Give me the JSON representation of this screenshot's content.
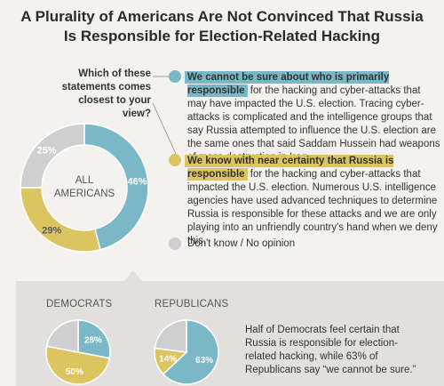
{
  "title_line1": "A Plurality of Americans Are Not Convinced That Russia",
  "title_line2": "Is Responsible for Election-Related Hacking",
  "question": "Which of these statements comes closest to your view?",
  "statements": {
    "uncertain": {
      "highlight": "We cannot be sure about who is primarily responsible",
      "body": "for the hacking and cyber-attacks that may have impacted the U.S. election. Tracing cyber-attacks is complicated and the intelligence groups that say Russia attempted to influence the U.S. election are the same ones that said Saddam Hussein had weapons of mass destruction in Iraq."
    },
    "certain": {
      "highlight": "We know with near certainty that Russia is responsible",
      "body": "for the hacking and cyber-attacks that impacted the U.S. election. Numerous U.S. intelligence agencies have used advanced techniques to determine Russia is responsible for these attacks and we are only playing into an unfriendly country's hand when we deny this."
    },
    "dont_know": "Don't know / No opinion"
  },
  "groups": {
    "democrats_label": "DEMOCRATS",
    "republicans_label": "REPUBLICANS"
  },
  "summary": "Half of Democrats feel certain that Russia is responsible for election-related hacking, while 63% of Republicans say “we cannot be sure.”",
  "colors": {
    "uncertain": "#7ab7c7",
    "certain": "#dcc560",
    "dont_know": "#cfcfcf"
  },
  "chart_data": [
    {
      "type": "pie",
      "center_label": "ALL AMERICANS",
      "labels": [
        "We cannot be sure",
        "We know with near certainty",
        "Don't know / No opinion"
      ],
      "values": [
        46,
        29,
        25
      ],
      "value_labels": [
        "46%",
        "29%",
        "25%"
      ]
    },
    {
      "type": "pie",
      "title": "DEMOCRATS",
      "labels": [
        "We cannot be sure",
        "We know with near certainty",
        "Don't know / No opinion"
      ],
      "values": [
        28,
        50,
        22
      ],
      "value_labels": [
        "28%",
        "50%",
        ""
      ]
    },
    {
      "type": "pie",
      "title": "REPUBLICANS",
      "labels": [
        "We cannot be sure",
        "We know with near certainty",
        "Don't know / No opinion"
      ],
      "values": [
        63,
        14,
        23
      ],
      "value_labels": [
        "63%",
        "14%",
        ""
      ]
    }
  ]
}
